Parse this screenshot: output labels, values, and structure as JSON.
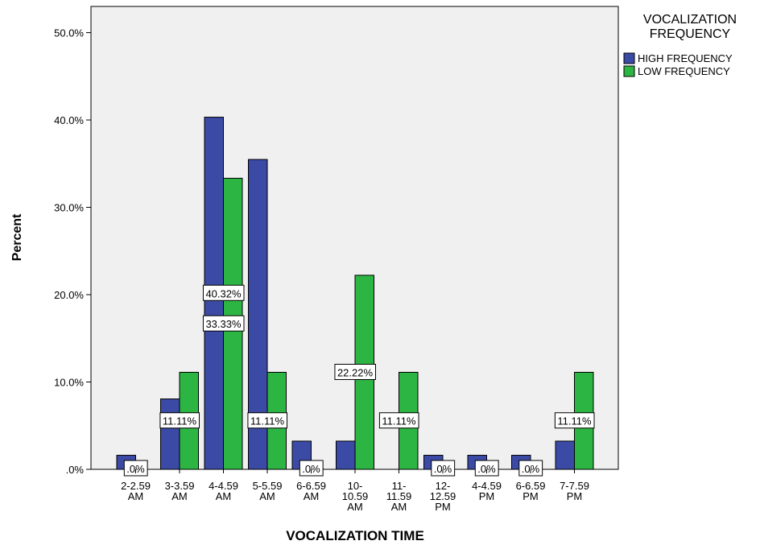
{
  "chart_data": {
    "type": "bar",
    "xlabel": "VOCALIZATION TIME",
    "ylabel": "Percent",
    "ylim": [
      0,
      53
    ],
    "y_ticks": [
      {
        "value": 0,
        "label": ".0%"
      },
      {
        "value": 10,
        "label": "10.0%"
      },
      {
        "value": 20,
        "label": "20.0%"
      },
      {
        "value": 30,
        "label": "30.0%"
      },
      {
        "value": 40,
        "label": "40.0%"
      },
      {
        "value": 50,
        "label": "50.0%"
      }
    ],
    "categories": [
      [
        "2-2.59",
        "AM"
      ],
      [
        "3-3.59",
        "AM"
      ],
      [
        "4-4.59",
        "AM"
      ],
      [
        "5-5.59",
        "AM"
      ],
      [
        "6-6.59",
        "AM"
      ],
      [
        "10-",
        "10.59",
        "AM"
      ],
      [
        "11-",
        "11.59",
        "AM"
      ],
      [
        "12-",
        "12.59",
        "PM"
      ],
      [
        "4-4.59",
        "PM"
      ],
      [
        "6-6.59",
        "PM"
      ],
      [
        "7-7.59",
        "PM"
      ]
    ],
    "series": [
      {
        "name": "HIGH FREQUENCY",
        "color": "#3b4aa5",
        "values": [
          1.61,
          8.06,
          40.32,
          35.48,
          3.23,
          3.23,
          0,
          1.61,
          1.61,
          1.61,
          3.23
        ],
        "labels": [
          "",
          "",
          "40.32%",
          "",
          "",
          "",
          "",
          "",
          "",
          "",
          ""
        ]
      },
      {
        "name": "LOW FREQUENCY",
        "color": "#2db543",
        "values": [
          0,
          11.11,
          33.33,
          11.11,
          0,
          22.22,
          11.11,
          0,
          0,
          0,
          11.11
        ],
        "labels": [
          ".0%",
          "11.11%",
          "33.33%",
          "11.11%",
          ".0%",
          "22.22%",
          "11.11%",
          ".0%",
          ".0%",
          ".0%",
          "11.11%"
        ]
      }
    ],
    "legend": {
      "title_lines": [
        "VOCALIZATION",
        "FREQUENCY"
      ],
      "position": "right"
    },
    "grid": false,
    "plot_background": "#f0f0f0"
  }
}
